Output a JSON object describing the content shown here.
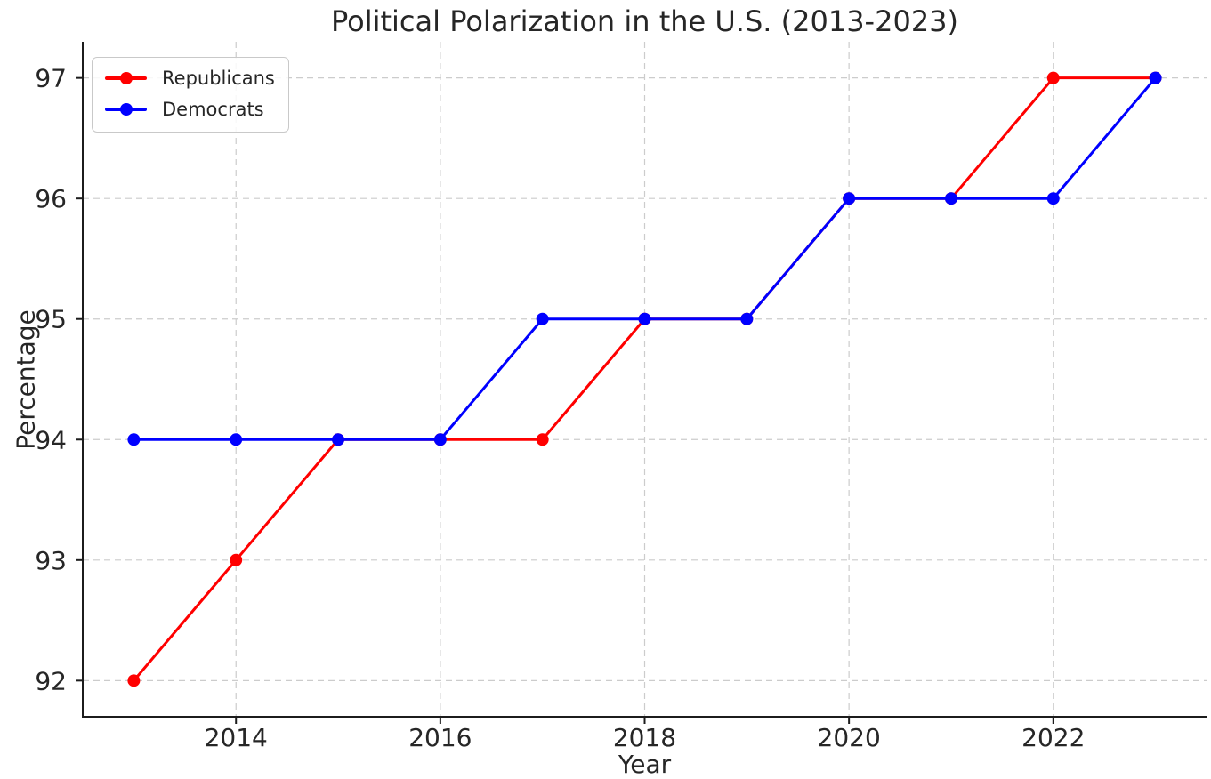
{
  "chart_data": {
    "type": "line",
    "title": "Political Polarization in the U.S. (2013-2023)",
    "xlabel": "Year",
    "ylabel": "Percentage",
    "x": [
      2013,
      2014,
      2015,
      2016,
      2017,
      2018,
      2019,
      2020,
      2021,
      2022,
      2023
    ],
    "series": [
      {
        "name": "Republicans",
        "color": "#ff0000",
        "values": [
          92,
          93,
          94,
          94,
          94,
          95,
          95,
          96,
          96,
          97,
          97
        ]
      },
      {
        "name": "Democrats",
        "color": "#0000ff",
        "values": [
          94,
          94,
          94,
          94,
          95,
          95,
          95,
          96,
          96,
          96,
          97
        ]
      }
    ],
    "xticks": [
      2014,
      2016,
      2018,
      2020,
      2022
    ],
    "yticks": [
      92,
      93,
      94,
      95,
      96,
      97
    ],
    "xlim": [
      2012.5,
      2023.5
    ],
    "ylim": [
      91.7,
      97.3
    ],
    "grid": true,
    "grid_style": "dashed",
    "marker": "circle",
    "legend_position": "upper left",
    "background_color": "#ffffff"
  }
}
